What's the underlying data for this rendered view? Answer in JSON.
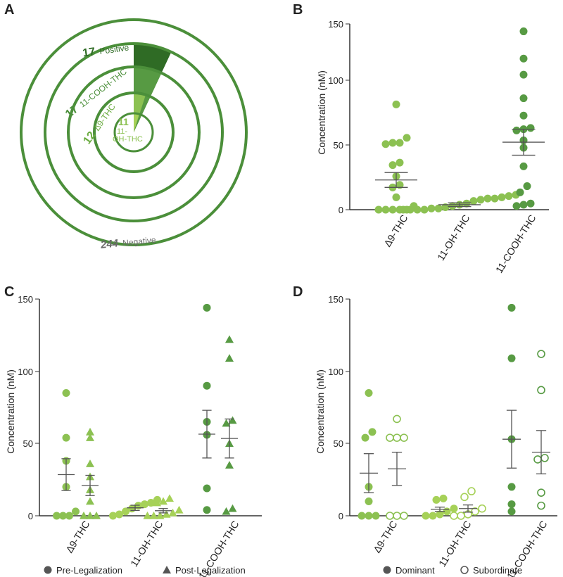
{
  "colors": {
    "dark": "#2f6b25",
    "mid": "#579a43",
    "light": "#8cc152",
    "lightest": "#a6d158",
    "ring": "#4b8f3a",
    "axis": "#333333",
    "mean": "#555555",
    "negative": "#6b6b6b"
  },
  "chart_data": [
    {
      "panel": "A",
      "type": "pie",
      "subtype": "concentric-ring",
      "total": {
        "value": "244",
        "label": "Negative"
      },
      "rings": [
        {
          "value": "17",
          "label": "Positive",
          "fraction": 0.0697
        },
        {
          "value": "17",
          "label": "11-COOH-THC",
          "fraction": 0.0697
        },
        {
          "value": "12",
          "label": "Δ9-THC",
          "fraction": 0.0492
        },
        {
          "value": "11",
          "label": "11-OH-THC",
          "fraction": 0.0451
        }
      ]
    },
    {
      "panel": "B",
      "type": "scatter",
      "ylabel": "Concentration (nM)",
      "ylim": [
        0,
        150
      ],
      "yticks": [
        0,
        50,
        100,
        150
      ],
      "categories": [
        "Δ9-THC",
        "11-OH-THC",
        "11-COOH-THC"
      ],
      "groups": [
        {
          "category": "Δ9-THC",
          "mean": 24,
          "sem": 6,
          "values": [
            85,
            58,
            54,
            54,
            53,
            38,
            36,
            27,
            20,
            18,
            10,
            3,
            0,
            0,
            0,
            0,
            0
          ]
        },
        {
          "category": "11-OH-THC",
          "mean": 4,
          "sem": 1.5,
          "values": [
            12,
            11,
            10,
            9,
            9,
            8,
            7,
            5,
            4,
            3,
            2,
            1,
            1,
            0,
            0,
            0,
            0
          ]
        },
        {
          "category": "11-COOH-THC",
          "mean": 54.5,
          "sem": 10.5,
          "values": [
            144,
            122,
            109,
            90,
            76,
            66,
            65,
            64,
            56,
            50,
            35,
            19,
            14,
            5,
            4,
            3
          ]
        }
      ]
    },
    {
      "panel": "C",
      "type": "scatter",
      "ylabel": "Concentration (nM)",
      "ylim": [
        0,
        150
      ],
      "yticks": [
        0,
        50,
        100,
        150
      ],
      "categories": [
        "Δ9-THC",
        "11-OH-THC",
        "11-COOH-THC"
      ],
      "legend": [
        {
          "shape": "circle",
          "label": "Pre-Legalization"
        },
        {
          "shape": "triangle",
          "label": "Post-Legalization"
        }
      ],
      "groups": [
        {
          "category": "Δ9-THC",
          "series": "Pre-Legalization",
          "shape": "circle",
          "mean": 28.5,
          "sem": 11,
          "values": [
            85,
            54,
            38,
            20,
            3,
            0,
            0,
            0
          ]
        },
        {
          "category": "Δ9-THC",
          "series": "Post-Legalization",
          "shape": "triangle",
          "mean": 21,
          "sem": 7,
          "values": [
            58,
            54,
            36,
            27,
            18,
            10,
            0,
            0,
            0
          ]
        },
        {
          "category": "11-OH-THC",
          "series": "Pre-Legalization",
          "shape": "circle",
          "mean": 5.5,
          "sem": 1.8,
          "values": [
            11,
            9,
            8,
            7,
            5,
            3,
            1,
            0
          ]
        },
        {
          "category": "11-OH-THC",
          "series": "Post-Legalization",
          "shape": "triangle",
          "mean": 3.5,
          "sem": 1.5,
          "values": [
            12,
            10,
            9,
            4,
            2,
            1,
            0,
            0,
            0
          ]
        },
        {
          "category": "11-COOH-THC",
          "series": "Pre-Legalization",
          "shape": "circle",
          "mean": 56.5,
          "sem": 16.5,
          "values": [
            144,
            90,
            65,
            56,
            19,
            4
          ]
        },
        {
          "category": "11-COOH-THC",
          "series": "Post-Legalization",
          "shape": "triangle",
          "mean": 53.5,
          "sem": 13.5,
          "values": [
            122,
            109,
            66,
            64,
            50,
            35,
            5,
            3
          ]
        }
      ]
    },
    {
      "panel": "D",
      "type": "scatter",
      "ylabel": "Concentration (nM)",
      "ylim": [
        0,
        150
      ],
      "yticks": [
        0,
        50,
        100,
        150
      ],
      "categories": [
        "Δ9-THC",
        "11-OH-THC",
        "11-COOH-THC"
      ],
      "legend": [
        {
          "shape": "filled",
          "label": "Dominant"
        },
        {
          "shape": "open",
          "label": "Subordinate"
        }
      ],
      "groups": [
        {
          "category": "Δ9-THC",
          "series": "Dominant",
          "shape": "filled",
          "mean": 29.5,
          "sem": 13.5,
          "values": [
            85,
            58,
            54,
            20,
            10,
            0,
            0,
            0
          ]
        },
        {
          "category": "Δ9-THC",
          "series": "Subordinate",
          "shape": "open",
          "mean": 32.5,
          "sem": 11.5,
          "values": [
            67,
            54,
            54,
            54,
            0,
            0,
            0
          ]
        },
        {
          "category": "11-OH-THC",
          "series": "Dominant",
          "shape": "filled",
          "mean": 4.5,
          "sem": 1.5,
          "values": [
            12,
            11,
            5,
            3,
            1,
            0,
            0
          ]
        },
        {
          "category": "11-OH-THC",
          "series": "Subordinate",
          "shape": "open",
          "mean": 5,
          "sem": 2.5,
          "values": [
            17,
            13,
            5,
            3,
            1,
            0,
            0
          ]
        },
        {
          "category": "11-COOH-THC",
          "series": "Dominant",
          "shape": "filled",
          "mean": 53,
          "sem": 20,
          "values": [
            144,
            109,
            53,
            20,
            8,
            3
          ]
        },
        {
          "category": "11-COOH-THC",
          "series": "Subordinate",
          "shape": "open",
          "mean": 44,
          "sem": 15,
          "values": [
            112,
            87,
            40,
            39,
            16,
            7
          ]
        }
      ]
    }
  ]
}
